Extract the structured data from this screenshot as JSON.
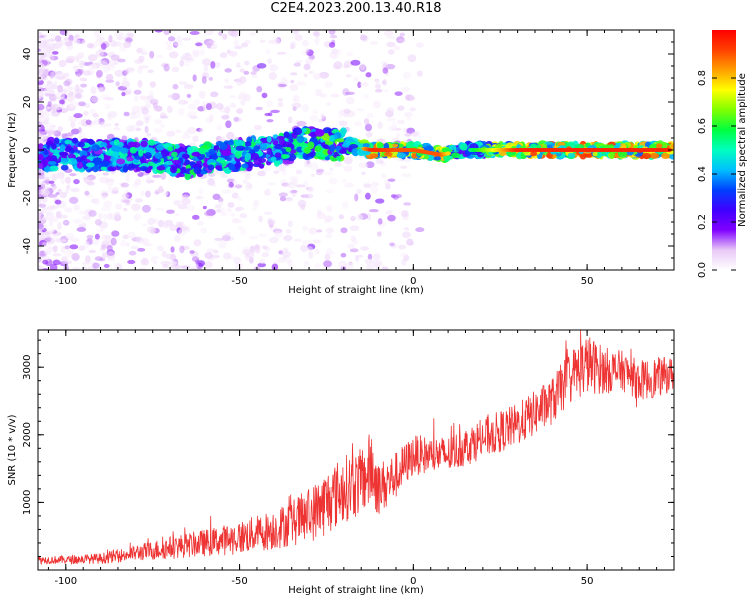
{
  "title": "C2E4.2023.200.13.40.R18",
  "chart_data": [
    {
      "type": "heatmap",
      "title": "",
      "xlabel": "Height of straight line (km)",
      "ylabel": "Frequency (Hz)",
      "xlim": [
        -108,
        75
      ],
      "ylim": [
        -50,
        50
      ],
      "xticks": [
        -100,
        -50,
        0,
        50
      ],
      "yticks": [
        -40,
        -20,
        0,
        20,
        40
      ],
      "colorbar": {
        "label": "Normalized spectral amplitude",
        "range": [
          0,
          1
        ],
        "ticks": [
          "0.0",
          "0.2",
          "0.4",
          "0.6",
          "0.8"
        ],
        "tick_values": [
          0,
          0.2,
          0.4,
          0.6,
          0.8
        ],
        "colormap": [
          "#ffffff",
          "#e9c9f7",
          "#7f00ff",
          "#3f00ff",
          "#0040ff",
          "#00c0ff",
          "#00ffc0",
          "#00ff40",
          "#80ff00",
          "#ffff00",
          "#ffa000",
          "#ff4000",
          "#ff0000"
        ]
      },
      "ridge": {
        "description_points": [
          {
            "x": -95,
            "y": -2,
            "amplitude": 0.3
          },
          {
            "x": -80,
            "y": -2,
            "amplitude": 0.35
          },
          {
            "x": -65,
            "y": -5,
            "amplitude": 0.4
          },
          {
            "x": -50,
            "y": -2,
            "amplitude": 0.4
          },
          {
            "x": -40,
            "y": 0,
            "amplitude": 0.35
          },
          {
            "x": -30,
            "y": 3,
            "amplitude": 0.45
          },
          {
            "x": -20,
            "y": 2,
            "amplitude": 0.5
          },
          {
            "x": -12,
            "y": 0,
            "amplitude": 0.95
          },
          {
            "x": -5,
            "y": 0,
            "amplitude": 0.9
          },
          {
            "x": 0,
            "y": 0,
            "amplitude": 0.9
          },
          {
            "x": 8,
            "y": -2,
            "amplitude": 0.9
          },
          {
            "x": 15,
            "y": 0,
            "amplitude": 0.5
          },
          {
            "x": 30,
            "y": 0,
            "amplitude": 0.95
          },
          {
            "x": 50,
            "y": 0,
            "amplitude": 0.95
          },
          {
            "x": 74,
            "y": 0,
            "amplitude": 0.95
          }
        ]
      }
    },
    {
      "type": "line",
      "title": "",
      "xlabel": "Height of straight line (km)",
      "ylabel": "SNR (10 * v/v)",
      "xlim": [
        -108,
        75
      ],
      "ylim": [
        0,
        3550
      ],
      "xticks": [
        -100,
        -50,
        0,
        50
      ],
      "yticks": [
        1000,
        2000,
        3000
      ],
      "color": "#ee3333",
      "series": [
        {
          "x": [
            -108,
            -100,
            -90,
            -80,
            -70,
            -60,
            -50,
            -40,
            -30,
            -25,
            -20,
            -15,
            -12,
            -10,
            -5,
            0,
            5,
            10,
            20,
            30,
            40,
            45,
            50,
            55,
            60,
            65,
            70,
            75
          ],
          "values": [
            150,
            150,
            170,
            250,
            330,
            400,
            480,
            600,
            800,
            1000,
            1200,
            1300,
            1500,
            1200,
            1400,
            1700,
            1700,
            1700,
            1950,
            2150,
            2500,
            2850,
            3050,
            2950,
            2950,
            2800,
            2850,
            2900
          ],
          "noise_amplitude": [
            60,
            60,
            80,
            120,
            170,
            200,
            250,
            300,
            400,
            500,
            500,
            500,
            600,
            400,
            350,
            300,
            280,
            280,
            300,
            320,
            350,
            400,
            450,
            350,
            300,
            300,
            300,
            250
          ]
        }
      ]
    }
  ]
}
